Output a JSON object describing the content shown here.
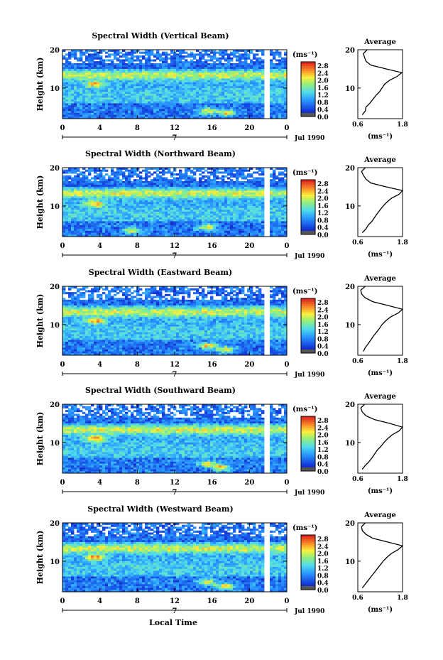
{
  "figure": {
    "xlabel": "Local Time",
    "date_label": "Jul 1990",
    "day_label": "7",
    "colorbar_unit": "(ms⁻¹)",
    "average_title": "Average",
    "average_xlabel": "(ms⁻¹)"
  },
  "chart_data": [
    {
      "type": "heatmap",
      "title": "Spectral Width (Vertical Beam)",
      "ylabel": "Height (km)",
      "xlabel": "",
      "x_ticks": [
        "0",
        "4",
        "8",
        "12",
        "16",
        "20",
        "0"
      ],
      "y_ticks": [
        "20",
        "10"
      ],
      "xlim": [
        0,
        24
      ],
      "ylim": [
        2,
        20
      ],
      "colorbar_ticks": [
        "2.8",
        "2.4",
        "2.0",
        "1.6",
        "1.2",
        "0.8",
        "0.4",
        "0.0"
      ],
      "colorbar_range": [
        0,
        3.0
      ],
      "max_height_km": 20,
      "hotspots": [
        {
          "x": 3.5,
          "y": 11
        },
        {
          "x": 15.5,
          "y": 4
        },
        {
          "x": 17.5,
          "y": 3.5
        }
      ],
      "data_gaps_hours": [
        [
          17.8,
          18.0
        ],
        [
          21.5,
          22.2
        ]
      ],
      "average": {
        "xlim": [
          0.6,
          1.8
        ],
        "x_ticks": [
          "0.6",
          "1.8"
        ],
        "y_ticks": [
          "20",
          "10"
        ],
        "height": [
          3,
          4,
          5,
          6,
          7,
          8,
          9,
          10,
          11,
          12,
          13,
          14,
          15,
          16,
          17,
          18,
          19,
          20
        ],
        "width": [
          0.72,
          0.8,
          0.82,
          0.92,
          1.0,
          1.08,
          1.18,
          1.25,
          1.32,
          1.45,
          1.65,
          1.78,
          1.35,
          0.95,
          0.82,
          0.78,
          0.75,
          0.85
        ]
      }
    },
    {
      "type": "heatmap",
      "title": "Spectral Width (Northward Beam)",
      "ylabel": "Height (km)",
      "xlabel": "",
      "x_ticks": [
        "0",
        "4",
        "8",
        "12",
        "16",
        "20",
        "0"
      ],
      "y_ticks": [
        "20",
        "10"
      ],
      "xlim": [
        0,
        24
      ],
      "ylim": [
        2,
        20
      ],
      "colorbar_ticks": [
        "2.8",
        "2.4",
        "2.0",
        "1.6",
        "1.2",
        "0.8",
        "0.4",
        "0.0"
      ],
      "colorbar_range": [
        0,
        3.0
      ],
      "max_height_km": 20,
      "hotspots": [
        {
          "x": 3.5,
          "y": 10.5
        },
        {
          "x": 7.5,
          "y": 3.5
        },
        {
          "x": 15.5,
          "y": 4.5
        }
      ],
      "data_gaps_hours": [
        [
          17.8,
          18.0
        ],
        [
          21.5,
          22.2
        ]
      ],
      "average": {
        "xlim": [
          0.6,
          1.8
        ],
        "x_ticks": [
          "0.6",
          "1.8"
        ],
        "y_ticks": [
          "20",
          "10"
        ],
        "height": [
          3,
          4,
          5,
          6,
          7,
          8,
          9,
          10,
          11,
          12,
          13,
          14,
          15,
          16,
          17,
          18,
          19,
          20
        ],
        "width": [
          0.72,
          0.82,
          0.88,
          0.98,
          1.05,
          1.12,
          1.2,
          1.28,
          1.38,
          1.5,
          1.7,
          1.8,
          1.35,
          0.95,
          0.82,
          0.75,
          0.7,
          0.8
        ]
      }
    },
    {
      "type": "heatmap",
      "title": "Spectral Width (Eastward Beam)",
      "ylabel": "Height (km)",
      "xlabel": "",
      "x_ticks": [
        "0",
        "4",
        "8",
        "12",
        "16",
        "20",
        "0"
      ],
      "y_ticks": [
        "20",
        "10"
      ],
      "xlim": [
        0,
        24
      ],
      "ylim": [
        2,
        20
      ],
      "colorbar_ticks": [
        "2.8",
        "2.4",
        "2.0",
        "1.6",
        "1.2",
        "0.8",
        "0.4",
        "0.0"
      ],
      "colorbar_range": [
        0,
        3.0
      ],
      "max_height_km": 20,
      "hotspots": [
        {
          "x": 3.5,
          "y": 11
        },
        {
          "x": 15.5,
          "y": 4.5
        },
        {
          "x": 17.5,
          "y": 3.5
        }
      ],
      "data_gaps_hours": [
        [
          17.8,
          18.0
        ],
        [
          21.5,
          22.2
        ]
      ],
      "average": {
        "xlim": [
          0.6,
          1.8
        ],
        "x_ticks": [
          "0.6",
          "1.8"
        ],
        "y_ticks": [
          "20",
          "10"
        ],
        "height": [
          3,
          4,
          5,
          6,
          7,
          8,
          9,
          10,
          11,
          12,
          13,
          14,
          15,
          16,
          17,
          18,
          19,
          20
        ],
        "width": [
          0.75,
          0.8,
          0.88,
          0.95,
          1.02,
          1.1,
          1.18,
          1.25,
          1.35,
          1.48,
          1.68,
          1.8,
          1.4,
          1.0,
          0.8,
          0.7,
          0.68,
          0.8
        ]
      }
    },
    {
      "type": "heatmap",
      "title": "Spectral Width (Southward Beam)",
      "ylabel": "Height (km)",
      "xlabel": "",
      "x_ticks": [
        "0",
        "4",
        "8",
        "12",
        "16",
        "20",
        "0"
      ],
      "y_ticks": [
        "20",
        "10"
      ],
      "xlim": [
        0,
        24
      ],
      "ylim": [
        2,
        20
      ],
      "colorbar_ticks": [
        "2.8",
        "2.4",
        "2.0",
        "1.6",
        "1.2",
        "0.8",
        "0.4",
        "0.0"
      ],
      "colorbar_range": [
        0,
        3.0
      ],
      "max_height_km": 20,
      "hotspots": [
        {
          "x": 3.5,
          "y": 11
        },
        {
          "x": 15.5,
          "y": 4.5
        },
        {
          "x": 17.0,
          "y": 3.5
        }
      ],
      "data_gaps_hours": [
        [
          17.8,
          18.0
        ],
        [
          21.5,
          22.2
        ]
      ],
      "average": {
        "xlim": [
          0.6,
          1.8
        ],
        "x_ticks": [
          "0.6",
          "1.8"
        ],
        "y_ticks": [
          "20",
          "10"
        ],
        "height": [
          3,
          4,
          5,
          6,
          7,
          8,
          9,
          10,
          11,
          12,
          13,
          14,
          15,
          16,
          17,
          18,
          19,
          20
        ],
        "width": [
          0.72,
          0.8,
          0.9,
          0.98,
          1.05,
          1.12,
          1.22,
          1.3,
          1.4,
          1.52,
          1.7,
          1.8,
          1.45,
          1.05,
          0.82,
          0.72,
          0.68,
          0.78
        ]
      }
    },
    {
      "type": "heatmap",
      "title": "Spectral Width (Westward Beam)",
      "ylabel": "Height (km)",
      "xlabel": "",
      "x_ticks": [
        "0",
        "4",
        "8",
        "12",
        "16",
        "20",
        "0"
      ],
      "y_ticks": [
        "20",
        "10"
      ],
      "xlim": [
        0,
        24
      ],
      "ylim": [
        2,
        20
      ],
      "colorbar_ticks": [
        "2.8",
        "2.4",
        "2.0",
        "1.6",
        "1.2",
        "0.8",
        "0.4",
        "0.0"
      ],
      "colorbar_range": [
        0,
        3.0
      ],
      "max_height_km": 20,
      "hotspots": [
        {
          "x": 3.5,
          "y": 11
        },
        {
          "x": 15.5,
          "y": 4.5
        },
        {
          "x": 17.5,
          "y": 3.5
        }
      ],
      "data_gaps_hours": [
        [
          17.8,
          18.0
        ],
        [
          21.5,
          22.2
        ]
      ],
      "average": {
        "xlim": [
          0.6,
          1.8
        ],
        "x_ticks": [
          "0.6",
          "1.8"
        ],
        "y_ticks": [
          "20",
          "10"
        ],
        "height": [
          3,
          4,
          5,
          6,
          7,
          8,
          9,
          10,
          11,
          12,
          13,
          14,
          15,
          16,
          17,
          18,
          19,
          20
        ],
        "width": [
          0.72,
          0.8,
          0.88,
          0.96,
          1.04,
          1.12,
          1.2,
          1.28,
          1.38,
          1.5,
          1.68,
          1.8,
          1.4,
          1.0,
          0.82,
          0.72,
          0.7,
          0.8
        ]
      }
    }
  ]
}
